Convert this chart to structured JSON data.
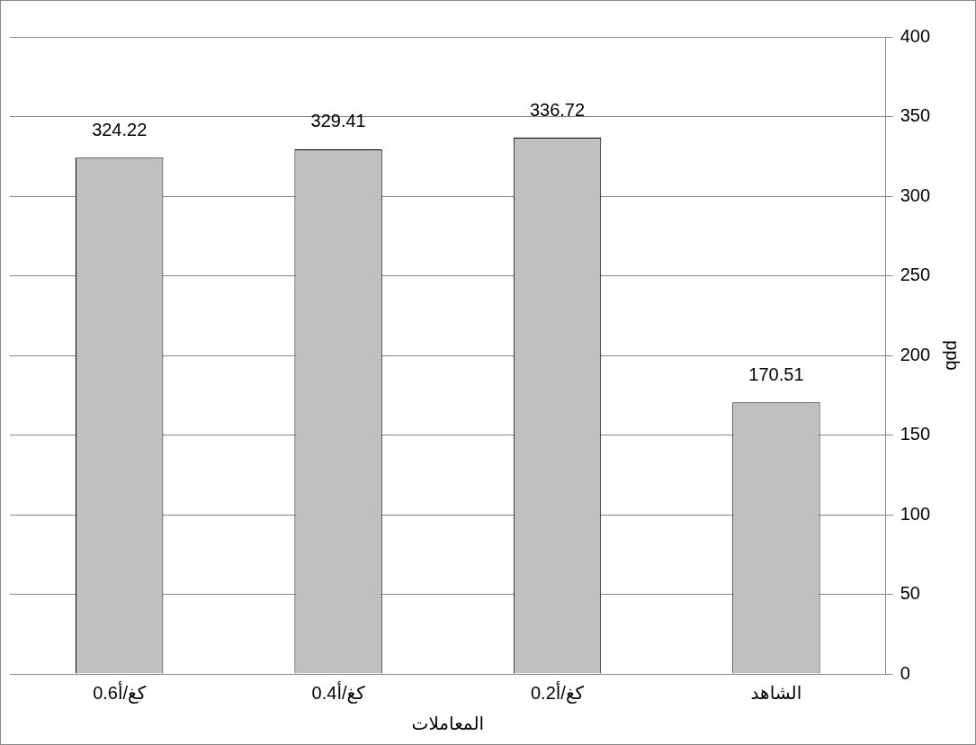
{
  "chart_data": {
    "type": "bar",
    "xlabel": "المعاملات",
    "ylabel": "ppb",
    "categories": [
      "0.6كغ/أ",
      "0.4كغ/أ",
      "0.2كغ/أ",
      "الشاهد"
    ],
    "values": [
      324.22,
      329.41,
      336.72,
      170.51
    ],
    "color": "#c0c0c0",
    "ylim": [
      0,
      400
    ],
    "yticks": [
      0,
      50,
      100,
      150,
      200,
      250,
      300,
      350,
      400
    ],
    "grid": "y",
    "data_labels": true,
    "legend": false
  }
}
